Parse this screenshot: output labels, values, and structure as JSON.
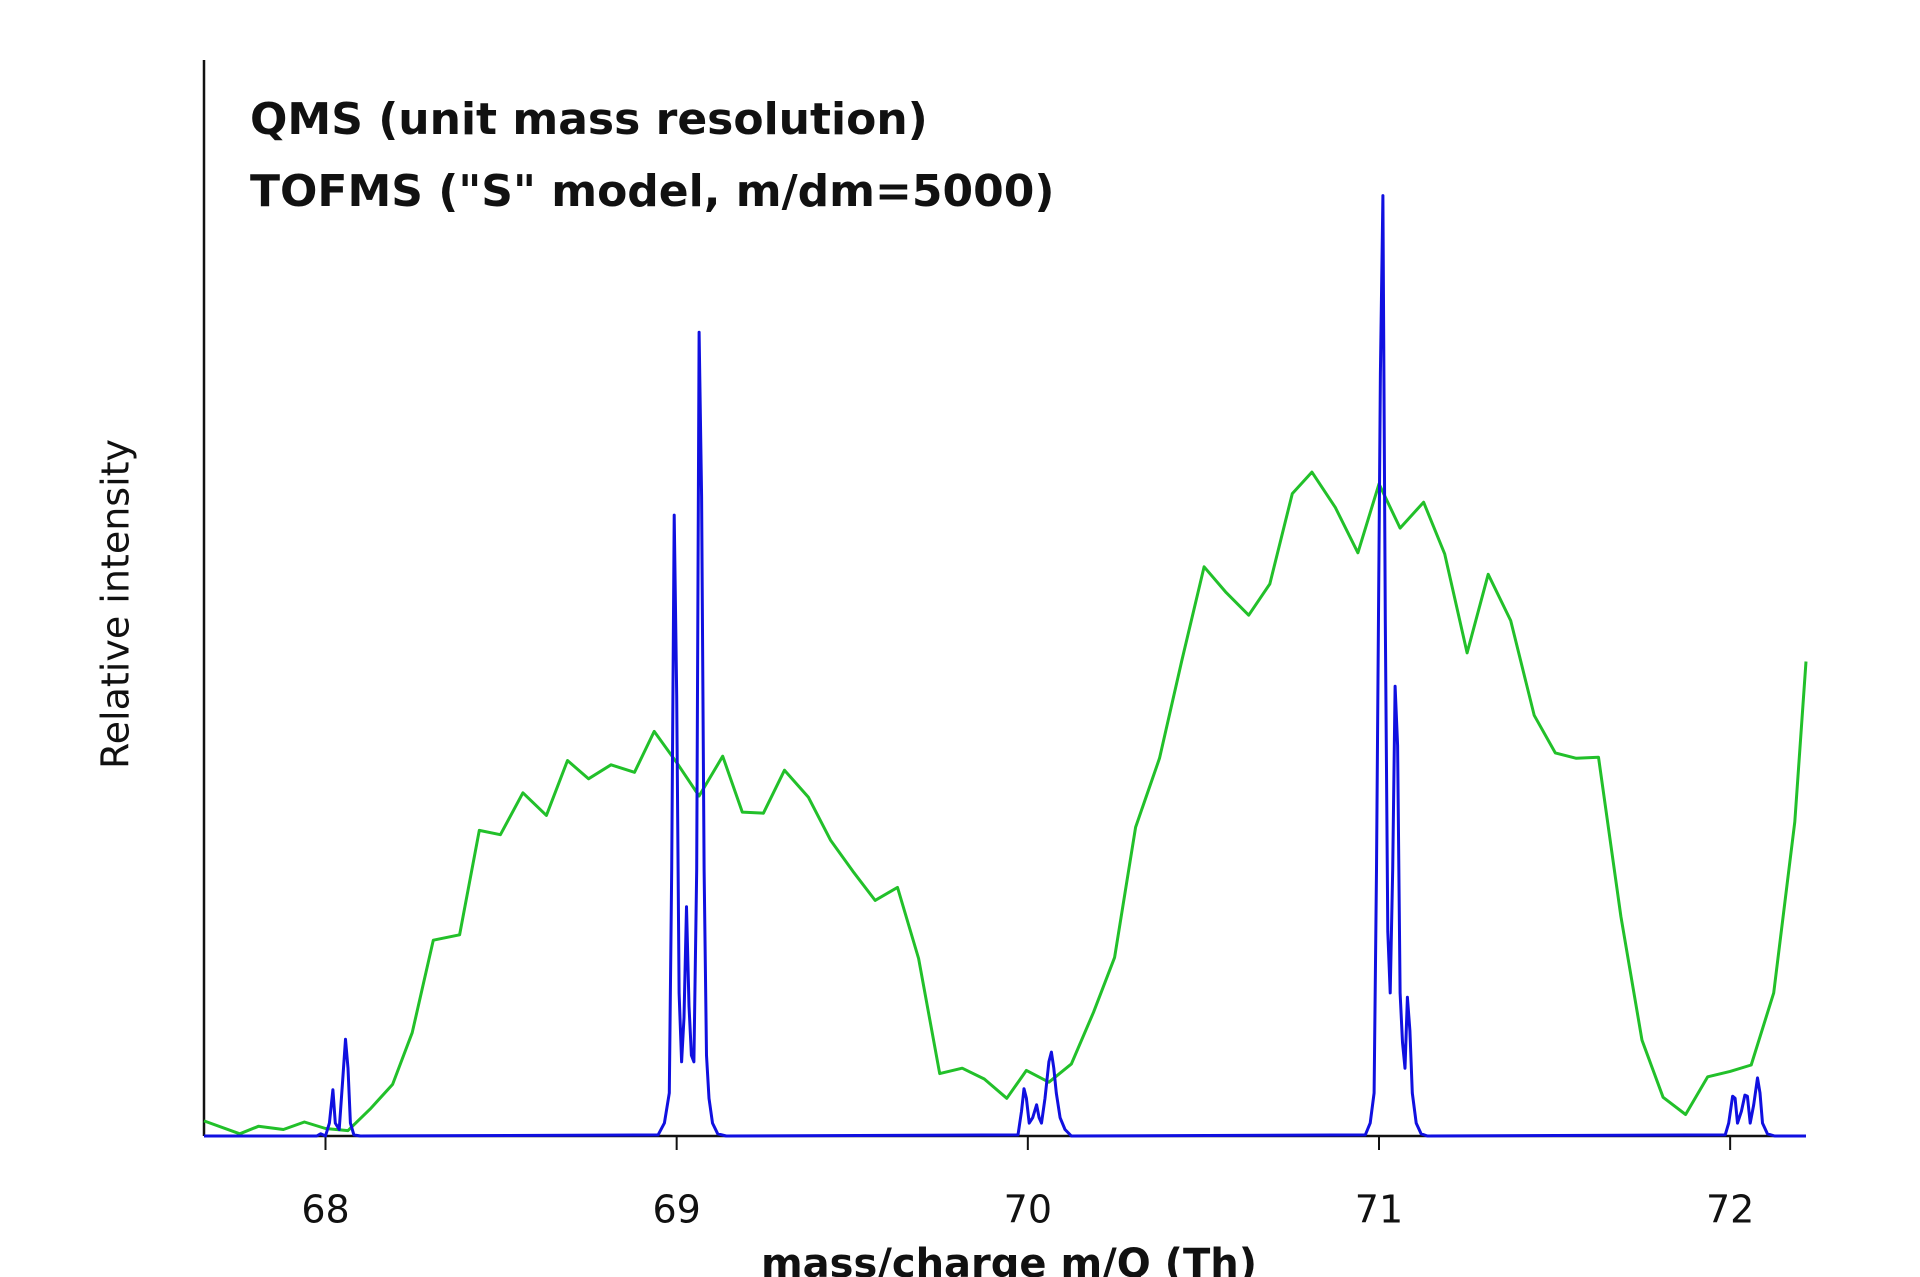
{
  "chart_data": {
    "type": "line",
    "xlabel": "mass/charge m/Q (Th)",
    "ylabel": "Relative intensity",
    "xlim": [
      67.654,
      72.216
    ],
    "ylim": [
      0,
      100
    ],
    "xticks": [
      68,
      69,
      70,
      71,
      72
    ],
    "grid": false,
    "legend": "upper left",
    "series": [
      {
        "name": "QMS (unit mass resolution)",
        "color": "#22c02a",
        "x": [
          67.654,
          67.756,
          67.809,
          67.88,
          67.94,
          68.0,
          68.064,
          68.127,
          68.191,
          68.247,
          68.307,
          68.382,
          68.438,
          68.498,
          68.562,
          68.629,
          68.689,
          68.749,
          68.813,
          68.88,
          68.936,
          69.0,
          69.064,
          69.131,
          69.187,
          69.247,
          69.307,
          69.375,
          69.438,
          69.502,
          69.565,
          69.629,
          69.689,
          69.749,
          69.813,
          69.876,
          69.94,
          69.996,
          70.06,
          70.124,
          70.187,
          70.247,
          70.307,
          70.375,
          70.438,
          70.502,
          70.565,
          70.629,
          70.689,
          70.753,
          70.809,
          70.876,
          70.94,
          71.0,
          71.06,
          71.127,
          71.187,
          71.251,
          71.311,
          71.375,
          71.442,
          71.502,
          71.562,
          71.625,
          71.689,
          71.749,
          71.809,
          71.873,
          71.936,
          72.0,
          72.06,
          72.124,
          72.184,
          72.216
        ],
        "values": [
          1.4,
          0.2,
          0.9,
          0.6,
          1.3,
          0.7,
          0.5,
          2.5,
          4.8,
          9.6,
          18.2,
          18.7,
          28.4,
          28.0,
          31.9,
          29.8,
          34.9,
          33.2,
          34.5,
          33.8,
          37.6,
          34.7,
          31.6,
          35.3,
          30.1,
          30.0,
          34.0,
          31.5,
          27.5,
          24.6,
          21.9,
          23.1,
          16.5,
          5.8,
          6.3,
          5.3,
          3.5,
          6.1,
          5.0,
          6.7,
          11.5,
          16.6,
          28.7,
          35.1,
          44.1,
          52.9,
          50.5,
          48.4,
          51.3,
          59.7,
          61.7,
          58.4,
          54.2,
          60.6,
          56.5,
          58.9,
          54.1,
          44.9,
          52.2,
          47.9,
          39.1,
          35.6,
          35.1,
          35.2,
          20.4,
          8.9,
          3.6,
          2.0,
          5.5,
          6.0,
          6.6,
          13.3,
          29.2,
          44.1
        ]
      },
      {
        "name": "TOFMS (\"S\" model, m/dm=5000)",
        "color": "#1010e0",
        "x": [
          67.654,
          67.975,
          67.986,
          68.0,
          68.011,
          68.021,
          68.028,
          68.039,
          68.049,
          68.057,
          68.064,
          68.071,
          68.081,
          68.099,
          68.947,
          68.965,
          68.979,
          68.986,
          68.993,
          69.0,
          69.007,
          69.014,
          69.021,
          69.028,
          69.035,
          69.042,
          69.049,
          69.057,
          69.064,
          69.071,
          69.078,
          69.085,
          69.092,
          69.102,
          69.117,
          69.141,
          69.972,
          69.982,
          69.989,
          69.996,
          70.004,
          70.014,
          70.025,
          70.032,
          70.039,
          70.049,
          70.06,
          70.067,
          70.074,
          70.081,
          70.092,
          70.106,
          70.124,
          70.961,
          70.975,
          70.986,
          70.993,
          71.004,
          71.011,
          71.018,
          71.025,
          71.032,
          71.039,
          71.046,
          71.053,
          71.06,
          71.067,
          71.074,
          71.081,
          71.088,
          71.095,
          71.106,
          71.12,
          71.138,
          71.986,
          71.996,
          72.007,
          72.014,
          72.021,
          72.032,
          72.042,
          72.049,
          72.057,
          72.067,
          72.078,
          72.085,
          72.092,
          72.106,
          72.127,
          72.216
        ],
        "values": [
          0,
          0,
          0.2,
          0,
          1.2,
          4.3,
          1.2,
          0.6,
          5.2,
          9.0,
          6.3,
          1.2,
          0.1,
          0,
          0.1,
          1.2,
          4.0,
          24.8,
          57.7,
          40.9,
          13.3,
          6.9,
          11.0,
          21.3,
          12.1,
          7.5,
          6.9,
          24.8,
          74.7,
          59.4,
          24.8,
          7.5,
          3.5,
          1.2,
          0.2,
          0,
          0.1,
          2.3,
          4.4,
          3.5,
          1.2,
          1.7,
          2.9,
          1.7,
          1.2,
          3.5,
          6.9,
          7.8,
          6.3,
          4.0,
          1.7,
          0.6,
          0,
          0.1,
          1.2,
          4.0,
          24.8,
          70.9,
          87.4,
          47.9,
          19.0,
          13.3,
          24.8,
          41.8,
          36.3,
          13.3,
          8.7,
          6.3,
          12.9,
          9.8,
          4.0,
          1.2,
          0.2,
          0,
          0.1,
          1.2,
          3.7,
          3.5,
          1.2,
          2.3,
          3.8,
          3.7,
          1.2,
          2.9,
          5.4,
          4.0,
          1.2,
          0.2,
          0,
          0
        ]
      }
    ]
  }
}
